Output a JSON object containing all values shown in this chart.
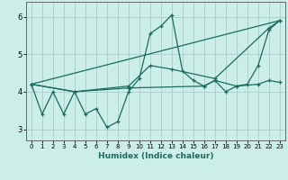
{
  "xlabel": "Humidex (Indice chaleur)",
  "background_color": "#cceee8",
  "grid_color": "#aacccc",
  "line_color": "#1a6b60",
  "xlim": [
    -0.5,
    23.5
  ],
  "ylim": [
    2.7,
    6.4
  ],
  "xticks": [
    0,
    1,
    2,
    3,
    4,
    5,
    6,
    7,
    8,
    9,
    10,
    11,
    12,
    13,
    14,
    15,
    16,
    17,
    18,
    19,
    20,
    21,
    22,
    23
  ],
  "yticks": [
    3,
    4,
    5,
    6
  ],
  "line1_x": [
    0,
    1,
    2,
    3,
    4,
    5,
    6,
    7,
    8,
    9,
    10,
    11,
    12,
    13,
    14,
    15,
    16,
    17,
    18,
    19,
    20,
    21,
    22,
    23
  ],
  "line1_y": [
    4.2,
    3.4,
    4.0,
    3.4,
    4.0,
    3.4,
    3.55,
    3.05,
    3.2,
    4.0,
    4.35,
    5.55,
    5.75,
    6.05,
    4.55,
    4.3,
    4.15,
    4.3,
    4.0,
    4.15,
    4.2,
    4.7,
    5.65,
    5.9
  ],
  "line2_x": [
    0,
    4,
    9,
    11,
    13,
    17,
    22,
    23
  ],
  "line2_y": [
    4.2,
    4.0,
    4.15,
    4.7,
    4.6,
    4.35,
    5.7,
    5.9
  ],
  "line3_x": [
    0,
    23
  ],
  "line3_y": [
    4.2,
    5.9
  ],
  "line4_x": [
    0,
    4,
    9,
    16,
    17,
    19,
    21,
    22,
    23
  ],
  "line4_y": [
    4.2,
    4.0,
    4.1,
    4.15,
    4.3,
    4.15,
    4.2,
    4.3,
    4.25
  ]
}
